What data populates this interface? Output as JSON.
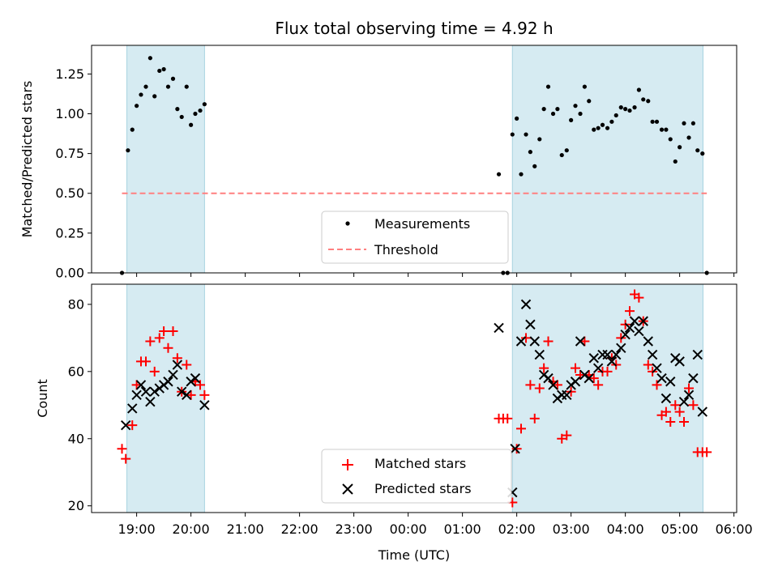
{
  "chart_data": [
    {
      "type": "scatter",
      "title": "Flux total observing time = 4.92 h",
      "xlabel": "",
      "ylabel": "Matched/Predicted stars",
      "xlim": [
        18.17,
        30.05
      ],
      "ylim": [
        0,
        1.43
      ],
      "yticks": [
        0.0,
        0.25,
        0.5,
        0.75,
        1.0,
        1.25
      ],
      "ytick_labels": [
        "0.00",
        "0.25",
        "0.50",
        "0.75",
        "1.00",
        "1.25"
      ],
      "shaded_intervals": [
        [
          18.82,
          20.25
        ],
        [
          25.92,
          29.43
        ]
      ],
      "legend": {
        "placement": "lower-center",
        "entries": [
          {
            "label": "Measurements",
            "marker": "dot",
            "color": "#000000"
          },
          {
            "label": "Threshold",
            "marker": "dashed-line",
            "color": "#ff7f7f"
          }
        ]
      },
      "series": [
        {
          "name": "Measurements",
          "color": "#000000",
          "x": [
            18.73,
            18.84,
            18.92,
            19.0,
            19.08,
            19.17,
            19.25,
            19.33,
            19.42,
            19.5,
            19.58,
            19.67,
            19.75,
            19.83,
            19.92,
            20.0,
            20.08,
            20.17,
            20.25,
            25.67,
            25.75,
            25.83,
            25.92,
            26.0,
            26.08,
            26.17,
            26.25,
            26.33,
            26.42,
            26.5,
            26.58,
            26.67,
            26.75,
            26.83,
            26.92,
            27.0,
            27.08,
            27.17,
            27.25,
            27.33,
            27.42,
            27.5,
            27.58,
            27.67,
            27.75,
            27.83,
            27.92,
            28.0,
            28.08,
            28.17,
            28.25,
            28.33,
            28.42,
            28.5,
            28.58,
            28.67,
            28.75,
            28.83,
            28.92,
            29.0,
            29.08,
            29.17,
            29.25,
            29.33,
            29.42,
            29.5
          ],
          "y": [
            0.0,
            0.77,
            0.9,
            1.05,
            1.12,
            1.17,
            1.35,
            1.11,
            1.27,
            1.28,
            1.17,
            1.22,
            1.03,
            0.98,
            1.17,
            0.93,
            1.0,
            1.02,
            1.06,
            0.62,
            0.0,
            0.0,
            0.87,
            0.97,
            0.62,
            0.87,
            0.76,
            0.67,
            0.84,
            1.03,
            1.17,
            1.0,
            1.03,
            0.74,
            0.77,
            0.96,
            1.05,
            1.0,
            1.17,
            1.08,
            0.9,
            0.91,
            0.93,
            0.91,
            0.95,
            0.99,
            1.04,
            1.03,
            1.02,
            1.04,
            1.15,
            1.09,
            1.08,
            0.95,
            0.95,
            0.9,
            0.9,
            0.84,
            0.7,
            0.79,
            0.94,
            0.85,
            0.94,
            0.77,
            0.75,
            0.0
          ]
        },
        {
          "name": "Threshold",
          "color": "#ff7f7f",
          "x": [
            18.73,
            29.5
          ],
          "y": [
            0.5,
            0.5
          ]
        }
      ]
    },
    {
      "type": "scatter",
      "title": "",
      "xlabel": "Time (UTC)",
      "ylabel": "Count",
      "xlim": [
        18.17,
        30.05
      ],
      "ylim": [
        18,
        86
      ],
      "yticks": [
        20,
        40,
        60,
        80
      ],
      "ytick_labels": [
        "20",
        "40",
        "60",
        "80"
      ],
      "xticks": [
        19,
        20,
        21,
        22,
        23,
        24,
        25,
        26,
        27,
        28,
        29,
        30
      ],
      "xtick_labels": [
        "19:00",
        "20:00",
        "21:00",
        "22:00",
        "23:00",
        "00:00",
        "01:00",
        "02:00",
        "03:00",
        "04:00",
        "05:00",
        "06:00"
      ],
      "shaded_intervals": [
        [
          18.82,
          20.25
        ],
        [
          25.92,
          29.43
        ]
      ],
      "legend": {
        "placement": "lower-center",
        "entries": [
          {
            "label": "Matched stars",
            "marker": "plus",
            "color": "#ff0000"
          },
          {
            "label": "Predicted stars",
            "marker": "x",
            "color": "#000000"
          }
        ]
      },
      "series": [
        {
          "name": "Matched stars",
          "marker": "plus",
          "color": "#ff0000",
          "x": [
            18.73,
            18.8,
            18.92,
            19.0,
            19.08,
            19.17,
            19.25,
            19.33,
            19.42,
            19.5,
            19.58,
            19.67,
            19.75,
            19.83,
            19.92,
            20.0,
            20.08,
            20.17,
            20.25,
            25.67,
            25.75,
            25.83,
            25.92,
            26.0,
            26.08,
            26.17,
            26.25,
            26.33,
            26.42,
            26.5,
            26.58,
            26.67,
            26.75,
            26.83,
            26.92,
            27.0,
            27.08,
            27.17,
            27.25,
            27.33,
            27.42,
            27.5,
            27.58,
            27.67,
            27.75,
            27.83,
            27.92,
            28.0,
            28.08,
            28.17,
            28.25,
            28.33,
            28.42,
            28.5,
            28.58,
            28.67,
            28.75,
            28.83,
            28.92,
            29.0,
            29.08,
            29.17,
            29.25,
            29.33,
            29.42,
            29.5
          ],
          "y": [
            37,
            34,
            44,
            56,
            63,
            63,
            69,
            60,
            70,
            72,
            67,
            72,
            64,
            54,
            62,
            53,
            57,
            56,
            53,
            46,
            46,
            46,
            21,
            37,
            43,
            70,
            56,
            46,
            55,
            61,
            69,
            57,
            56,
            40,
            41,
            54,
            61,
            59,
            69,
            59,
            58,
            56,
            60,
            60,
            64,
            62,
            70,
            74,
            78,
            83,
            82,
            75,
            62,
            60,
            56,
            47,
            48,
            45,
            50,
            48,
            45,
            55,
            50,
            36,
            36,
            36
          ]
        },
        {
          "name": "Predicted stars",
          "marker": "x",
          "color": "#000000",
          "x": [
            18.8,
            18.92,
            19.0,
            19.08,
            19.17,
            19.25,
            19.33,
            19.42,
            19.5,
            19.58,
            19.67,
            19.75,
            19.83,
            19.92,
            20.0,
            20.08,
            20.25,
            25.67,
            25.92,
            25.97,
            26.08,
            26.17,
            26.25,
            26.33,
            26.42,
            26.5,
            26.58,
            26.67,
            26.75,
            26.83,
            26.92,
            27.0,
            27.08,
            27.17,
            27.25,
            27.33,
            27.42,
            27.5,
            27.58,
            27.67,
            27.75,
            27.83,
            27.92,
            28.0,
            28.08,
            28.17,
            28.25,
            28.33,
            28.42,
            28.5,
            28.58,
            28.67,
            28.75,
            28.83,
            28.92,
            29.0,
            29.08,
            29.17,
            29.25,
            29.33,
            29.42
          ],
          "y": [
            44,
            49,
            53,
            56,
            54,
            51,
            54,
            55,
            56,
            57,
            59,
            62,
            54,
            53,
            57,
            58,
            50,
            73,
            24,
            37,
            69,
            80,
            74,
            69,
            65,
            59,
            58,
            56,
            52,
            53,
            53,
            56,
            57,
            69,
            59,
            58,
            64,
            61,
            65,
            65,
            63,
            65,
            67,
            71,
            73,
            75,
            72,
            75,
            69,
            65,
            61,
            58,
            52,
            57,
            64,
            63,
            51,
            53,
            58,
            65,
            48
          ]
        }
      ]
    }
  ]
}
